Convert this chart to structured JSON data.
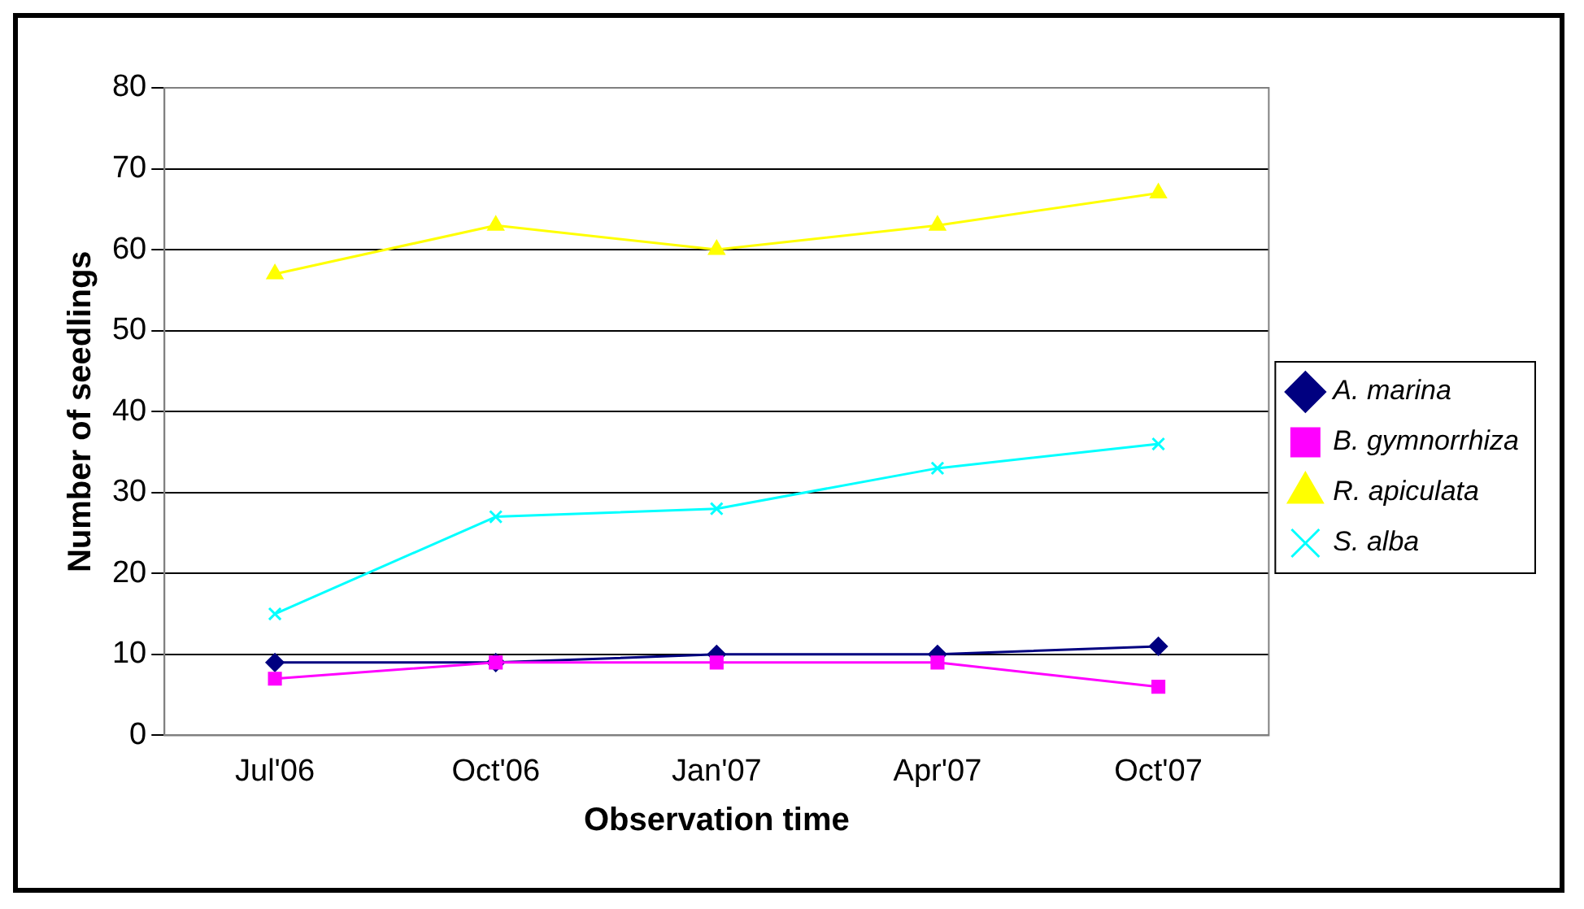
{
  "chart_data": {
    "type": "line",
    "xlabel": "Observation time",
    "ylabel": "Number of seedlings",
    "categories": [
      "Jul'06",
      "Oct'06",
      "Jan'07",
      "Apr'07",
      "Oct'07"
    ],
    "series": [
      {
        "name": "A. marina",
        "color": "#000080",
        "marker": "diamond",
        "values": [
          9,
          9,
          10,
          10,
          11
        ]
      },
      {
        "name": "B. gymnorrhiza",
        "color": "#ff00ff",
        "marker": "square",
        "values": [
          7,
          9,
          9,
          9,
          6
        ]
      },
      {
        "name": "R. apiculata",
        "color": "#ffff00",
        "marker": "triangle",
        "values": [
          57,
          63,
          60,
          63,
          67
        ]
      },
      {
        "name": "S. alba",
        "color": "#00ffff",
        "marker": "cross",
        "values": [
          15,
          27,
          28,
          33,
          36
        ]
      }
    ],
    "ylim": [
      0,
      80
    ],
    "yticks": [
      0,
      10,
      20,
      30,
      40,
      50,
      60,
      70,
      80
    ],
    "grid": "y",
    "legend": "right"
  }
}
